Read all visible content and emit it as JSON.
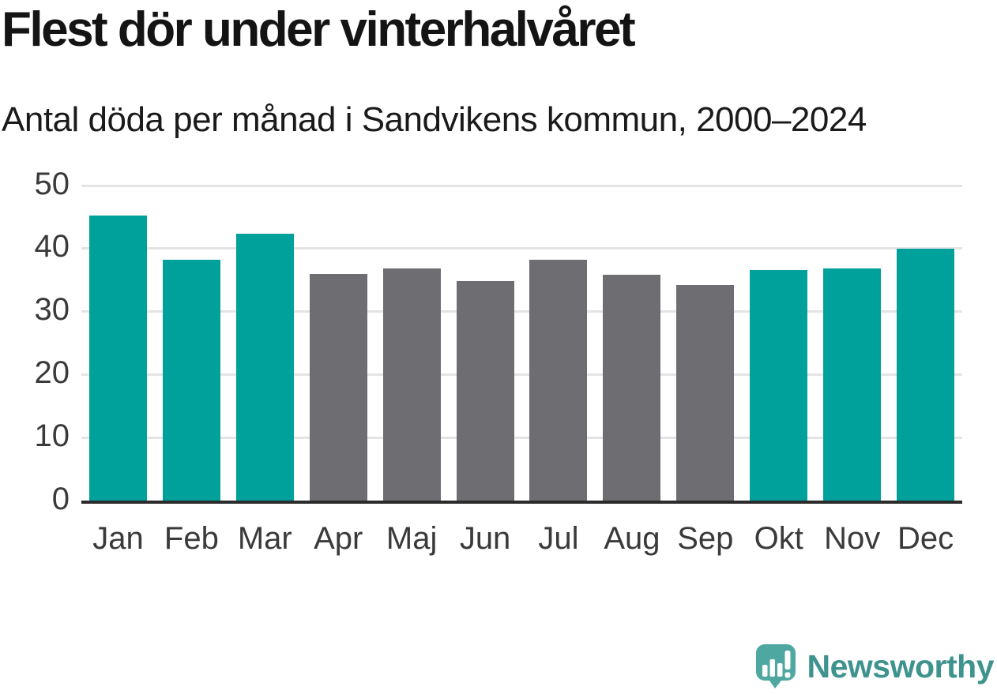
{
  "page": {
    "background": "#ffffff"
  },
  "header": {
    "title": "Flest dör under vinterhalvåret",
    "subtitle": "Antal döda per månad i Sandvikens kommun, 2000–2024"
  },
  "chart_data": {
    "type": "bar",
    "title": "Flest dör under vinterhalvåret",
    "subtitle": "Antal döda per månad i Sandvikens kommun, 2000–2024",
    "categories": [
      "Jan",
      "Feb",
      "Mar",
      "Apr",
      "Maj",
      "Jun",
      "Jul",
      "Aug",
      "Sep",
      "Okt",
      "Nov",
      "Dec"
    ],
    "values": [
      45.3,
      38.2,
      42.3,
      36.0,
      36.8,
      34.8,
      38.2,
      35.8,
      34.2,
      36.6,
      36.9,
      40.0
    ],
    "bar_colors": [
      "#00A19A",
      "#00A19A",
      "#00A19A",
      "#6D6D72",
      "#6D6D72",
      "#6D6D72",
      "#6D6D72",
      "#6D6D72",
      "#6D6D72",
      "#00A19A",
      "#00A19A",
      "#00A19A"
    ],
    "highlight_color": "#00A19A",
    "muted_color": "#6D6D72",
    "xlabel": "",
    "ylabel": "",
    "ylim": [
      0,
      50
    ],
    "yticks": [
      0,
      10,
      20,
      30,
      40,
      50
    ],
    "grid": "horizontal",
    "gridline_color": "#e4e4e4",
    "baseline_color": "#2b2b2b",
    "legend": "none"
  },
  "branding": {
    "logo_text": "Newsworthy",
    "logo_icon": "newsworthy-speech-bubble-bar-chart-icon",
    "logo_bubble_color": "#4FA7A2",
    "logo_text_color": "#3F938E"
  }
}
